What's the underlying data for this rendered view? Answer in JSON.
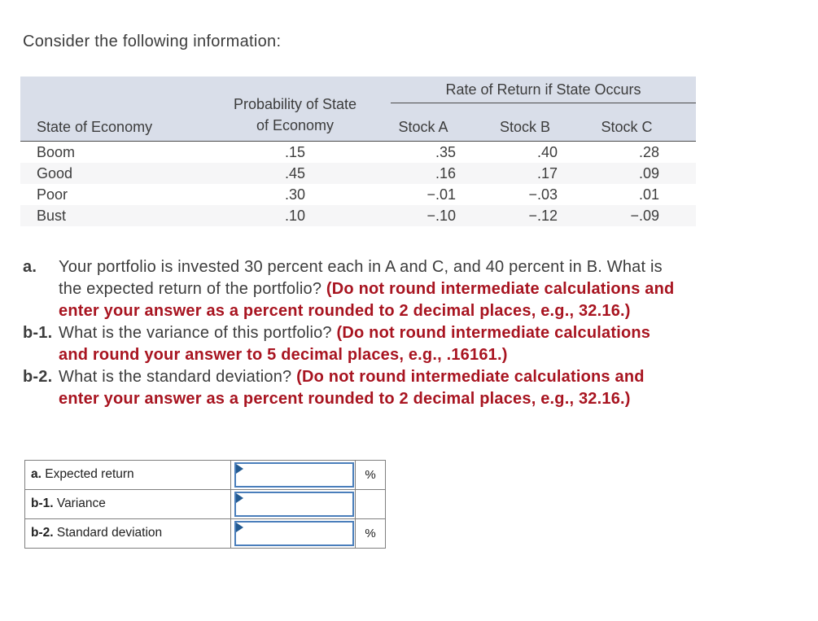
{
  "page_title": "Consider the following information:",
  "colors": {
    "header_bg": "#d9dee9",
    "alt_row_bg": "#f6f6f7",
    "instruction_red": "#a81420",
    "input_border_blue": "#4a7ebb",
    "marker_blue": "#235a91"
  },
  "info_table": {
    "span_header": "Rate of Return if State Occurs",
    "headers": {
      "state": "State of Economy",
      "probability_line1": "Probability of State",
      "probability_line2": "of Economy",
      "stock_a": "Stock A",
      "stock_b": "Stock B",
      "stock_c": "Stock C"
    },
    "rows": [
      {
        "state": "Boom",
        "probability": ".15",
        "stock_a": ".35",
        "stock_b": ".40",
        "stock_c": ".28"
      },
      {
        "state": "Good",
        "probability": ".45",
        "stock_a": ".16",
        "stock_b": ".17",
        "stock_c": ".09"
      },
      {
        "state": "Poor",
        "probability": ".30",
        "stock_a": "−.01",
        "stock_b": "−.03",
        "stock_c": ".01"
      },
      {
        "state": "Bust",
        "probability": ".10",
        "stock_a": "−.10",
        "stock_b": "−.12",
        "stock_c": "−.09"
      }
    ]
  },
  "questions": [
    {
      "label": "a.",
      "text": "Your portfolio is invested 30 percent each in A and C, and 40 percent in B. What is the expected return of the portfolio? ",
      "instruction": "(Do not round intermediate calculations and enter your answer as a percent rounded to 2 decimal places, e.g., 32.16.)"
    },
    {
      "label": "b-1.",
      "text": "What is the variance of this portfolio? ",
      "instruction": "(Do not round intermediate calculations and round your answer to 5 decimal places, e.g., .16161.)"
    },
    {
      "label": "b-2.",
      "text": "What is the standard deviation? ",
      "instruction": "(Do not round intermediate calculations and enter your answer as a percent rounded to 2 decimal places, e.g., 32.16.)"
    }
  ],
  "answers": {
    "rows": [
      {
        "label_prefix": "a.",
        "label": "Expected return",
        "value": "",
        "unit": "%"
      },
      {
        "label_prefix": "b-1.",
        "label": "Variance",
        "value": "",
        "unit": ""
      },
      {
        "label_prefix": "b-2.",
        "label": "Standard deviation",
        "value": "",
        "unit": "%"
      }
    ]
  }
}
